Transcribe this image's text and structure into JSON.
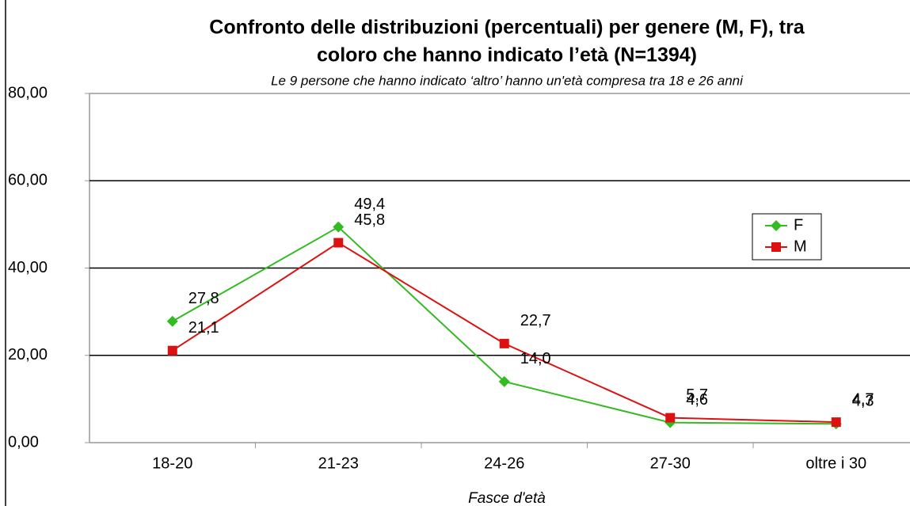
{
  "chart_data": {
    "type": "line",
    "title": "Confronto delle distribuzioni (percentuali) per genere (M, F), tra",
    "title_line2": "coloro che hanno indicato l’età (N=1394)",
    "subtitle": "Le 9  persone che hanno indicato ‘altro’ hanno un'età compresa tra 18 e 26 anni",
    "x_label": "Fasce d'età",
    "categories": [
      "18-20",
      "21-23",
      "24-26",
      "27-30",
      "oltre i 30"
    ],
    "series": [
      {
        "name": "F",
        "color": "#33bb22",
        "marker": "diamond",
        "values": [
          27.8,
          49.4,
          14.0,
          4.6,
          4.3
        ],
        "value_labels": [
          "27,8",
          "49,4",
          "14,0",
          "4,6",
          "4,3"
        ]
      },
      {
        "name": "M",
        "color": "#dd1111",
        "marker": "square",
        "values": [
          21.1,
          45.8,
          22.7,
          5.7,
          4.7
        ],
        "value_labels": [
          "21,1",
          "45,8",
          "22,7",
          "5,7",
          "4,7"
        ]
      }
    ],
    "ylim": [
      0,
      80
    ],
    "yticks": [
      {
        "value": 0,
        "label": "0,00"
      },
      {
        "value": 20,
        "label": "20,00"
      },
      {
        "value": 40,
        "label": "40,00"
      },
      {
        "value": 60,
        "label": "60,00"
      },
      {
        "value": 80,
        "label": "80,00"
      }
    ],
    "grid": true,
    "legend": "right"
  }
}
